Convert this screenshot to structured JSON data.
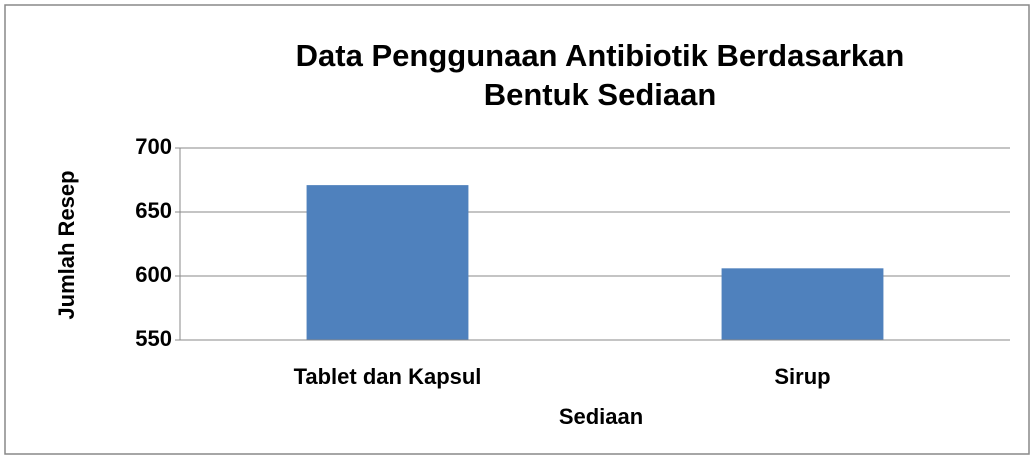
{
  "chart_data": {
    "type": "bar",
    "title": "Data Penggunaan Antibiotik Berdasarkan Bentuk Sediaan",
    "x_label": "Sediaan",
    "y_label": "Jumlah Resep",
    "categories": [
      "Tablet dan Kapsul",
      "Sirup"
    ],
    "values": [
      671,
      606
    ],
    "color": "#4f81bd",
    "ylim": [
      550,
      700
    ],
    "yticks": [
      550,
      600,
      650,
      700
    ],
    "grid": true
  }
}
